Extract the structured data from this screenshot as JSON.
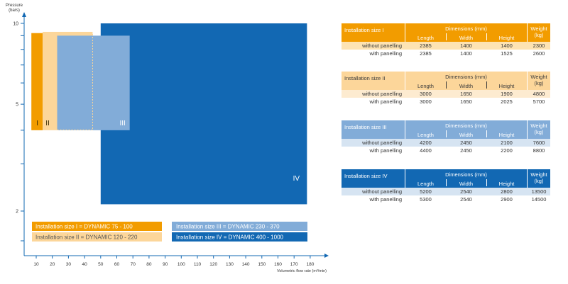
{
  "chart_data": {
    "type": "area",
    "ylabel": [
      "Pressure",
      "(bars)"
    ],
    "xlabel": "Volumetric flow rate (m³/min)",
    "x_ticks": [
      10,
      20,
      30,
      40,
      50,
      60,
      70,
      80,
      90,
      100,
      110,
      120,
      130,
      140,
      150,
      160,
      170,
      180
    ],
    "y_ticks": [
      2,
      5,
      10
    ],
    "xlim": [
      0,
      190
    ],
    "regions": [
      {
        "label": "I",
        "color": "#f29c00",
        "x": [
          7,
          14
        ],
        "y": [
          4,
          9.2
        ]
      },
      {
        "label": "II",
        "color": "#fcd69a",
        "x": [
          14,
          45
        ],
        "y": [
          4,
          9.3
        ]
      },
      {
        "label": "III",
        "color": "#82acd8",
        "x": [
          23,
          68
        ],
        "y": [
          4,
          9
        ]
      },
      {
        "label": "IV",
        "color": "#1268b3",
        "x": [
          50,
          178
        ],
        "y": [
          2.12,
          10
        ]
      }
    ],
    "legend": [
      {
        "text": "Installation size I = DYNAMIC 75 - 100",
        "color": "#f29c00"
      },
      {
        "text": "Installation size II = DYNAMIC 120 - 220",
        "color": "#fcd69a"
      },
      {
        "text": "Installation size III = DYNAMIC 230 - 370",
        "color": "#82acd8"
      },
      {
        "text": "Installation size IV = DYNAMIC 400 - 1000",
        "color": "#1268b3"
      }
    ]
  },
  "tables": [
    {
      "title": "Installation size I",
      "header_color": "#f29c00",
      "header_text": "#ffffff",
      "row_color": "#fde3b3",
      "dimensions_label": "Dimensions (mm)",
      "col_length": "Length",
      "col_width": "Width",
      "col_height": "Height",
      "col_weight": "Weight\n(kg)",
      "rows": [
        {
          "label": "without panelling",
          "length": "2385",
          "width": "1400",
          "height": "1400",
          "weight": "2300"
        },
        {
          "label": "with panelling",
          "length": "2385",
          "width": "1400",
          "height": "1525",
          "weight": "2600"
        }
      ]
    },
    {
      "title": "Installation size II",
      "header_color": "#fcd69a",
      "header_text": "#3a3a3a",
      "row_color": "#fdebd0",
      "dimensions_label": "Dimensions (mm)",
      "col_length": "Length",
      "col_width": "Width",
      "col_height": "Height",
      "col_weight": "Weight\n(kg)",
      "rows": [
        {
          "label": "without panelling",
          "length": "3000",
          "width": "1650",
          "height": "1900",
          "weight": "4800"
        },
        {
          "label": "with panelling",
          "length": "3000",
          "width": "1650",
          "height": "2025",
          "weight": "5700"
        }
      ]
    },
    {
      "title": "Installation size III",
      "header_color": "#82acd8",
      "header_text": "#ffffff",
      "row_color": "#d6e4f2",
      "dimensions_label": "Dimensions (mm)",
      "col_length": "Length",
      "col_width": "Width",
      "col_height": "Height",
      "col_weight": "Weight\n(kg)",
      "rows": [
        {
          "label": "without panelling",
          "length": "4200",
          "width": "2450",
          "height": "2100",
          "weight": "7600"
        },
        {
          "label": "with panelling",
          "length": "4400",
          "width": "2450",
          "height": "2200",
          "weight": "8800"
        }
      ]
    },
    {
      "title": "Installation size IV",
      "header_color": "#1268b3",
      "header_text": "#ffffff",
      "row_color": "#d6e4f2",
      "dimensions_label": "Dimensions (mm)",
      "col_length": "Length",
      "col_width": "Width",
      "col_height": "Height",
      "col_weight": "Weight\n(kg)",
      "rows": [
        {
          "label": "without panelling",
          "length": "5200",
          "width": "2540",
          "height": "2800",
          "weight": "13500"
        },
        {
          "label": "with panelling",
          "length": "5300",
          "width": "2540",
          "height": "2900",
          "weight": "14500"
        }
      ]
    }
  ]
}
